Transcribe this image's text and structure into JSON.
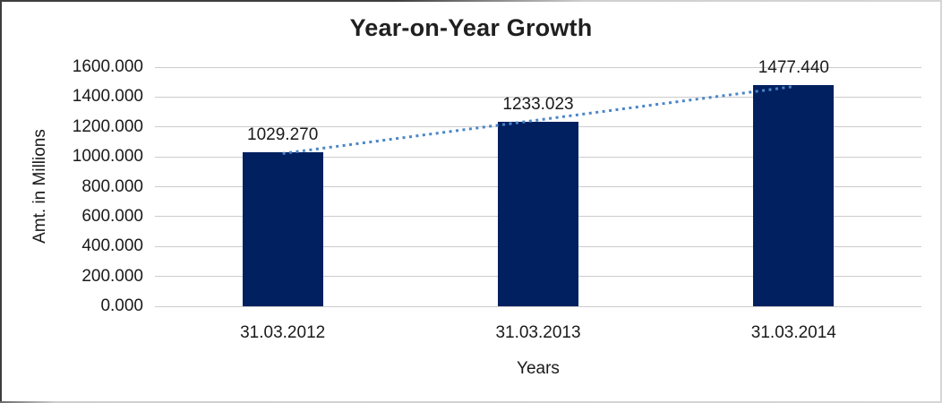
{
  "chart_data": {
    "type": "bar",
    "title": "Year-on-Year Growth",
    "xlabel": "Years",
    "ylabel": "Amt. in Millions",
    "categories": [
      "31.03.2012",
      "31.03.2013",
      "31.03.2014"
    ],
    "values": [
      1029.27,
      1233.023,
      1477.44
    ],
    "data_labels": [
      "1029.270",
      "1233.023",
      "1477.440"
    ],
    "ylim": [
      0,
      1600
    ],
    "ytick_step": 200,
    "ytick_labels": [
      "1600.000",
      "1400.000",
      "1200.000",
      "1000.000",
      "800.000",
      "600.000",
      "400.000",
      "200.000",
      "0.000"
    ],
    "grid": true,
    "legend_position": "none",
    "bar_color": "#002060",
    "gridline_color": "#cccccc",
    "trendline": {
      "type": "linear",
      "style": "dotted",
      "color": "#4a86c8"
    }
  }
}
